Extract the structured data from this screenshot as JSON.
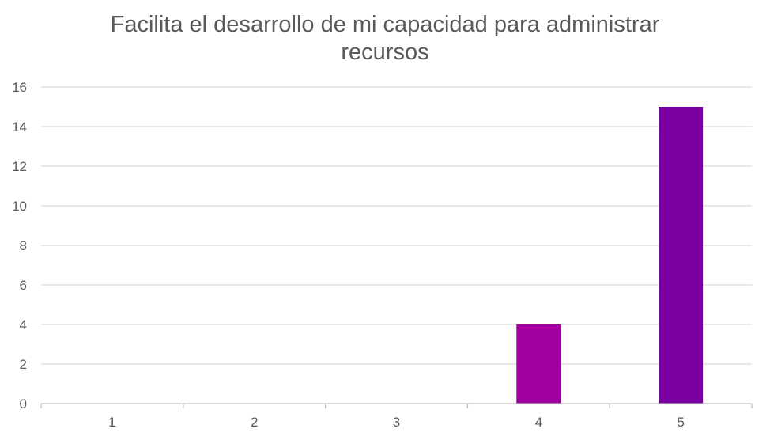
{
  "chart_data": {
    "type": "bar",
    "title_lines": [
      "Facilita el desarrollo de mi capacidad para administrar",
      "recursos"
    ],
    "categories": [
      "1",
      "2",
      "3",
      "4",
      "5"
    ],
    "values": [
      0,
      0,
      0,
      4,
      15
    ],
    "bar_colors": [
      "#A100A1",
      "#A100A1",
      "#A100A1",
      "#A100A1",
      "#7A00A1"
    ],
    "xlabel": "",
    "ylabel": "",
    "ylim": [
      0,
      16
    ],
    "yticks": [
      0,
      2,
      4,
      6,
      8,
      10,
      12,
      14,
      16
    ],
    "grid": true,
    "legend": "none",
    "colors": {
      "gridline": "#D9D9D9",
      "axis": "#BFBFBF",
      "text": "#595959"
    }
  }
}
